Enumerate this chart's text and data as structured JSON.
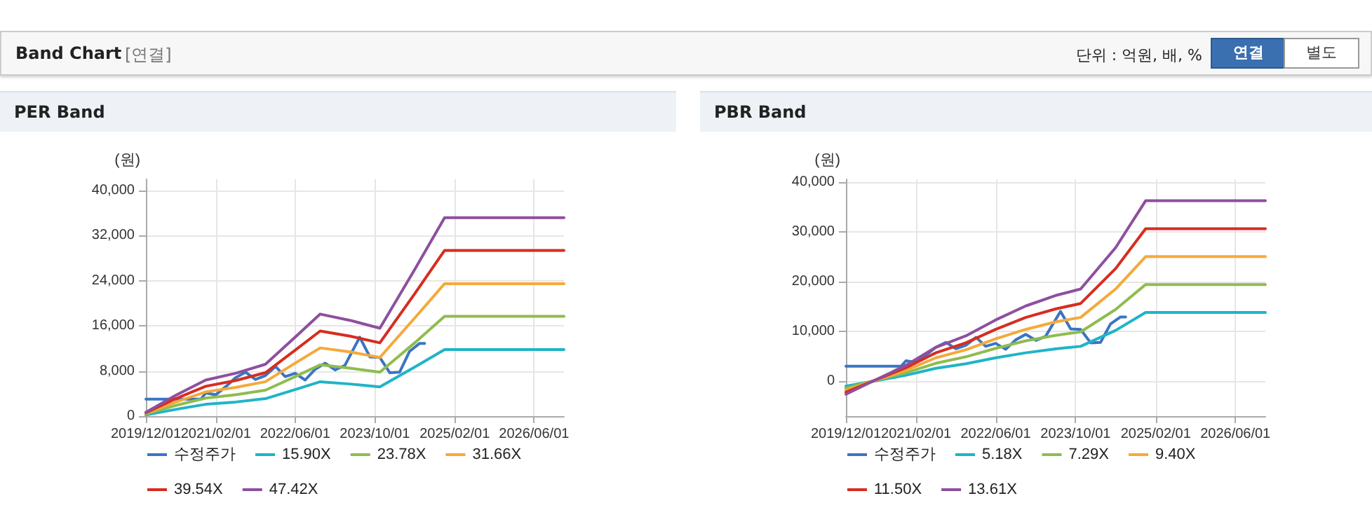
{
  "chart_data": [
    {
      "type": "line",
      "title": "PER Band",
      "ylabel": "(원)",
      "annotations": [
        "Band Chart",
        "[연결]",
        "단위 : 억원, 배, %",
        "연결",
        "별도"
      ],
      "xlim": [
        "2019-12-01",
        "2026-12-01"
      ],
      "xticks": [
        {
          "value": "2019-12-01",
          "label": "2019/12/01"
        },
        {
          "value": "2021-02-01",
          "label": "2021/02/01"
        },
        {
          "value": "2022-06-01",
          "label": "2022/06/01"
        },
        {
          "value": "2023-10-01",
          "label": "2023/10/01"
        },
        {
          "value": "2025-02-01",
          "label": "2025/02/01"
        },
        {
          "value": "2026-06-01",
          "label": "2026/06/01"
        }
      ],
      "ylim": [
        0,
        42000
      ],
      "yticks": [
        {
          "value": 0,
          "label": "0"
        },
        {
          "value": 8000,
          "label": "8,000"
        },
        {
          "value": 16000,
          "label": "16,000"
        },
        {
          "value": 24000,
          "label": "24,000"
        },
        {
          "value": 32000,
          "label": "32,000"
        },
        {
          "value": 40000,
          "label": "40,000"
        }
      ],
      "grid": true,
      "legend": "bottom",
      "marker": "none",
      "line_style": "solid",
      "series": [
        {
          "name": "수정주가",
          "color": "#3a75c4",
          "x": [
            "2019-12",
            "2020-03",
            "2020-06",
            "2020-09",
            "2020-11",
            "2020-12",
            "2021-02",
            "2021-04",
            "2021-06",
            "2021-08",
            "2021-10",
            "2021-12",
            "2022-02",
            "2022-04",
            "2022-06",
            "2022-08",
            "2022-10",
            "2022-12",
            "2023-02",
            "2023-04",
            "2023-07",
            "2023-09",
            "2023-11",
            "2024-01",
            "2024-03",
            "2024-05",
            "2024-07",
            "2024-08"
          ],
          "values": [
            3000,
            3000,
            3000,
            3000,
            3000,
            4100,
            3800,
            5200,
            6800,
            7800,
            6500,
            7200,
            8800,
            7000,
            7600,
            6400,
            8300,
            9400,
            8200,
            9000,
            14000,
            10500,
            10400,
            7700,
            7800,
            11500,
            12900,
            12900
          ]
        },
        {
          "name": "15.90X",
          "color": "#1fb4c8",
          "x": [
            "2019-12",
            "2020-06",
            "2020-12",
            "2021-06",
            "2021-12",
            "2022-06",
            "2022-11",
            "2023-05",
            "2023-11",
            "2024-06",
            "2024-12",
            "2026-12"
          ],
          "values": [
            200,
            1200,
            2100,
            2500,
            3100,
            4700,
            6100,
            5700,
            5200,
            8700,
            11800,
            11800
          ]
        },
        {
          "name": "23.78X",
          "color": "#8fbc4f",
          "x": [
            "2019-12",
            "2020-06",
            "2020-12",
            "2021-06",
            "2021-12",
            "2022-06",
            "2022-11",
            "2023-05",
            "2023-11",
            "2024-06",
            "2024-12",
            "2026-12"
          ],
          "values": [
            400,
            1900,
            3200,
            3800,
            4600,
            7000,
            9100,
            8500,
            7800,
            13000,
            17700,
            17700
          ]
        },
        {
          "name": "31.66X",
          "color": "#f5a93a",
          "x": [
            "2019-12",
            "2020-06",
            "2020-12",
            "2021-06",
            "2021-12",
            "2022-06",
            "2022-11",
            "2023-05",
            "2023-11",
            "2024-06",
            "2024-12",
            "2026-12"
          ],
          "values": [
            500,
            2500,
            4300,
            5100,
            6100,
            9400,
            12100,
            11400,
            10400,
            17400,
            23500,
            23500
          ]
        },
        {
          "name": "39.54X",
          "color": "#d62d20",
          "x": [
            "2019-12",
            "2020-06",
            "2020-12",
            "2021-06",
            "2021-12",
            "2022-06",
            "2022-11",
            "2023-05",
            "2023-11",
            "2024-06",
            "2024-12",
            "2026-12"
          ],
          "values": [
            600,
            3100,
            5300,
            6300,
            7700,
            11700,
            15100,
            14200,
            13000,
            21700,
            29400,
            29400
          ]
        },
        {
          "name": "47.42X",
          "color": "#8e4f9e",
          "x": [
            "2019-12",
            "2020-06",
            "2020-12",
            "2021-06",
            "2021-12",
            "2022-06",
            "2022-11",
            "2023-05",
            "2023-11",
            "2024-06",
            "2024-12",
            "2026-12"
          ],
          "values": [
            700,
            3700,
            6400,
            7600,
            9200,
            14000,
            18100,
            17000,
            15600,
            26000,
            35200,
            35200
          ]
        }
      ]
    },
    {
      "type": "line",
      "title": "PBR Band",
      "ylabel": "(원)",
      "xlim": [
        "2019-12-01",
        "2026-12-01"
      ],
      "xticks": [
        {
          "value": "2019-12-01",
          "label": "2019/12/01"
        },
        {
          "value": "2021-02-01",
          "label": "2021/02/01"
        },
        {
          "value": "2022-06-01",
          "label": "2022/06/01"
        },
        {
          "value": "2023-10-01",
          "label": "2023/10/01"
        },
        {
          "value": "2025-02-01",
          "label": "2025/02/01"
        },
        {
          "value": "2026-06-01",
          "label": "2026/06/01"
        }
      ],
      "ylim": [
        -7000,
        40500
      ],
      "yticks": [
        {
          "value": 0,
          "label": "0"
        },
        {
          "value": 10000,
          "label": "10,000"
        },
        {
          "value": 20000,
          "label": "20,000"
        },
        {
          "value": 30000,
          "label": "30,000"
        },
        {
          "value": 40000,
          "label": "40,000"
        }
      ],
      "grid": true,
      "legend": "bottom",
      "marker": "none",
      "line_style": "solid",
      "series": [
        {
          "name": "수정주가",
          "color": "#3a75c4",
          "x": [
            "2019-12",
            "2020-03",
            "2020-06",
            "2020-09",
            "2020-11",
            "2020-12",
            "2021-02",
            "2021-04",
            "2021-06",
            "2021-08",
            "2021-10",
            "2021-12",
            "2022-02",
            "2022-04",
            "2022-06",
            "2022-08",
            "2022-10",
            "2022-12",
            "2023-02",
            "2023-04",
            "2023-07",
            "2023-09",
            "2023-11",
            "2024-01",
            "2024-03",
            "2024-05",
            "2024-07",
            "2024-08"
          ],
          "values": [
            3000,
            3000,
            3000,
            3000,
            3000,
            4100,
            3800,
            5200,
            6800,
            7800,
            6500,
            7200,
            8800,
            7000,
            7600,
            6400,
            8300,
            9400,
            8200,
            9000,
            14000,
            10500,
            10400,
            7700,
            7800,
            11500,
            12900,
            12900
          ]
        },
        {
          "name": "5.18X",
          "color": "#1fb4c8",
          "x": [
            "2019-12",
            "2020-06",
            "2020-12",
            "2021-06",
            "2021-12",
            "2022-06",
            "2022-12",
            "2023-06",
            "2023-11",
            "2024-06",
            "2024-12",
            "2026-12"
          ],
          "values": [
            -1000,
            100,
            1200,
            2600,
            3500,
            4700,
            5700,
            6500,
            7000,
            10200,
            13800,
            13800
          ]
        },
        {
          "name": "7.29X",
          "color": "#8fbc4f",
          "x": [
            "2019-12",
            "2020-06",
            "2020-12",
            "2021-06",
            "2021-12",
            "2022-06",
            "2022-12",
            "2023-06",
            "2023-11",
            "2024-06",
            "2024-12",
            "2026-12"
          ],
          "values": [
            -1400,
            200,
            1700,
            3600,
            4900,
            6600,
            8100,
            9200,
            9900,
            14400,
            19400,
            19400
          ]
        },
        {
          "name": "9.40X",
          "color": "#f5a93a",
          "x": [
            "2019-12",
            "2020-06",
            "2020-12",
            "2021-06",
            "2021-12",
            "2022-06",
            "2022-12",
            "2023-06",
            "2023-11",
            "2024-06",
            "2024-12",
            "2026-12"
          ],
          "values": [
            -1800,
            200,
            2200,
            4700,
            6300,
            8500,
            10400,
            11900,
            12800,
            18500,
            25000,
            25000
          ]
        },
        {
          "name": "11.50X",
          "color": "#d62d20",
          "x": [
            "2019-12",
            "2020-06",
            "2020-12",
            "2021-06",
            "2021-12",
            "2022-06",
            "2022-12",
            "2023-06",
            "2023-11",
            "2024-06",
            "2024-12",
            "2026-12"
          ],
          "values": [
            -2200,
            300,
            2700,
            5700,
            7700,
            10400,
            12800,
            14500,
            15600,
            22600,
            30600,
            30600
          ]
        },
        {
          "name": "13.61X",
          "color": "#8e4f9e",
          "x": [
            "2019-12",
            "2020-06",
            "2020-12",
            "2021-06",
            "2021-12",
            "2022-06",
            "2022-12",
            "2023-06",
            "2023-11",
            "2024-06",
            "2024-12",
            "2026-12"
          ],
          "values": [
            -2600,
            300,
            3200,
            6800,
            9100,
            12300,
            15100,
            17200,
            18500,
            26800,
            36200,
            36200
          ]
        }
      ]
    }
  ]
}
